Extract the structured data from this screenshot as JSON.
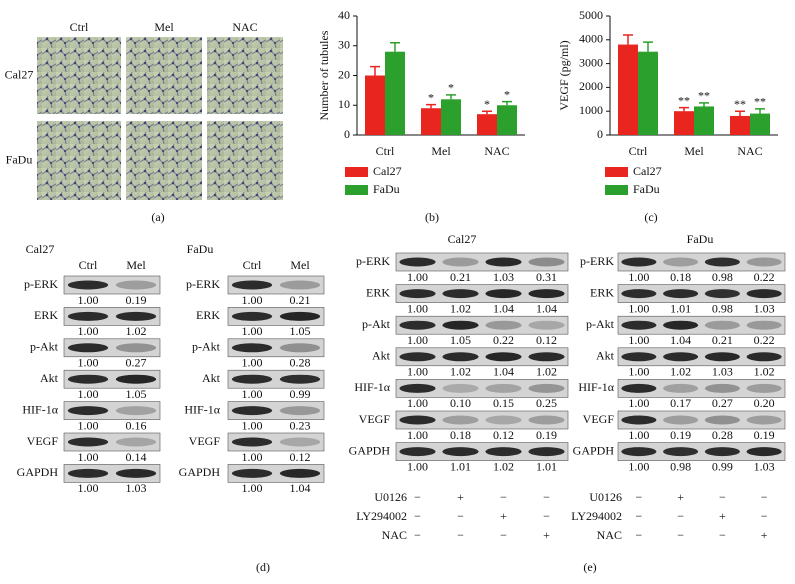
{
  "panel_labels": [
    "(a)",
    "(b)",
    "(c)",
    "(d)",
    "(e)"
  ],
  "microscopy": {
    "columns": [
      "Ctrl",
      "Mel",
      "NAC"
    ],
    "rows": [
      "Cal27",
      "FaDu"
    ]
  },
  "chart_data": [
    {
      "type": "bar",
      "ylabel": "Number of tubules",
      "categories": [
        "Ctrl",
        "Mel",
        "NAC"
      ],
      "series": [
        {
          "name": "Cal27",
          "color": "#e8251f",
          "values": [
            20,
            9,
            7
          ],
          "errors": [
            3,
            1.2,
            1
          ],
          "annotations": [
            null,
            "*",
            "*"
          ]
        },
        {
          "name": "FaDu",
          "color": "#2ca02c",
          "values": [
            28,
            12,
            10
          ],
          "errors": [
            3,
            1.5,
            1.2
          ],
          "annotations": [
            null,
            "*",
            "*"
          ]
        }
      ],
      "ylim": [
        0,
        40
      ],
      "yticks": [
        0,
        10,
        20,
        30,
        40
      ]
    },
    {
      "type": "bar",
      "ylabel": "VEGF (pg/ml)",
      "categories": [
        "Ctrl",
        "Mel",
        "NAC"
      ],
      "series": [
        {
          "name": "Cal27",
          "color": "#e8251f",
          "values": [
            3800,
            1000,
            800
          ],
          "errors": [
            400,
            150,
            200
          ],
          "annotations": [
            null,
            "**",
            "**"
          ]
        },
        {
          "name": "FaDu",
          "color": "#2ca02c",
          "values": [
            3500,
            1200,
            900
          ],
          "errors": [
            400,
            150,
            200
          ],
          "annotations": [
            null,
            "**",
            "**"
          ]
        }
      ],
      "ylim": [
        0,
        5000
      ],
      "yticks": [
        0,
        1000,
        2000,
        3000,
        4000,
        5000
      ]
    }
  ],
  "blots": [
    {
      "title": "Cal27",
      "lanes": [
        "Ctrl",
        "Mel"
      ],
      "rows": [
        {
          "label": "p-ERK",
          "values": [
            "1.00",
            "0.19"
          ]
        },
        {
          "label": "ERK",
          "values": [
            "1.00",
            "1.02"
          ]
        },
        {
          "label": "p-Akt",
          "values": [
            "1.00",
            "0.27"
          ]
        },
        {
          "label": "Akt",
          "values": [
            "1.00",
            "1.05"
          ]
        },
        {
          "label": "HIF-1α",
          "values": [
            "1.00",
            "0.16"
          ]
        },
        {
          "label": "VEGF",
          "values": [
            "1.00",
            "0.14"
          ]
        },
        {
          "label": "GAPDH",
          "values": [
            "1.00",
            "1.03"
          ]
        }
      ]
    },
    {
      "title": "FaDu",
      "lanes": [
        "Ctrl",
        "Mel"
      ],
      "rows": [
        {
          "label": "p-ERK",
          "values": [
            "1.00",
            "0.21"
          ]
        },
        {
          "label": "ERK",
          "values": [
            "1.00",
            "1.05"
          ]
        },
        {
          "label": "p-Akt",
          "values": [
            "1.00",
            "0.28"
          ]
        },
        {
          "label": "Akt",
          "values": [
            "1.00",
            "0.99"
          ]
        },
        {
          "label": "HIF-1α",
          "values": [
            "1.00",
            "0.23"
          ]
        },
        {
          "label": "VEGF",
          "values": [
            "1.00",
            "0.12"
          ]
        },
        {
          "label": "GAPDH",
          "values": [
            "1.00",
            "1.04"
          ]
        }
      ]
    },
    {
      "title": "Cal27",
      "rows": [
        {
          "label": "p-ERK",
          "values": [
            "1.00",
            "0.21",
            "1.03",
            "0.31"
          ]
        },
        {
          "label": "ERK",
          "values": [
            "1.00",
            "1.02",
            "1.04",
            "1.04"
          ]
        },
        {
          "label": "p-Akt",
          "values": [
            "1.00",
            "1.05",
            "0.22",
            "0.12"
          ]
        },
        {
          "label": "Akt",
          "values": [
            "1.00",
            "1.02",
            "1.04",
            "1.02"
          ]
        },
        {
          "label": "HIF-1α",
          "values": [
            "1.00",
            "0.10",
            "0.15",
            "0.25"
          ]
        },
        {
          "label": "VEGF",
          "values": [
            "1.00",
            "0.18",
            "0.12",
            "0.19"
          ]
        },
        {
          "label": "GAPDH",
          "values": [
            "1.00",
            "1.01",
            "1.02",
            "1.01"
          ]
        }
      ],
      "treatments": [
        {
          "label": "U0126",
          "signs": [
            "−",
            "+",
            "−",
            "−"
          ]
        },
        {
          "label": "LY294002",
          "signs": [
            "−",
            "−",
            "+",
            "−"
          ]
        },
        {
          "label": "NAC",
          "signs": [
            "−",
            "−",
            "−",
            "+"
          ]
        }
      ]
    },
    {
      "title": "FaDu",
      "rows": [
        {
          "label": "p-ERK",
          "values": [
            "1.00",
            "0.18",
            "0.98",
            "0.22"
          ]
        },
        {
          "label": "ERK",
          "values": [
            "1.00",
            "1.01",
            "0.98",
            "1.03"
          ]
        },
        {
          "label": "p-Akt",
          "values": [
            "1.00",
            "1.04",
            "0.21",
            "0.22"
          ]
        },
        {
          "label": "Akt",
          "values": [
            "1.00",
            "1.02",
            "1.03",
            "1.02"
          ]
        },
        {
          "label": "HIF-1α",
          "values": [
            "1.00",
            "0.17",
            "0.27",
            "0.20"
          ]
        },
        {
          "label": "VEGF",
          "values": [
            "1.00",
            "0.19",
            "0.28",
            "0.19"
          ]
        },
        {
          "label": "GAPDH",
          "values": [
            "1.00",
            "0.98",
            "0.99",
            "1.03"
          ]
        }
      ],
      "treatments": [
        {
          "label": "U0126",
          "signs": [
            "−",
            "+",
            "−",
            "−"
          ]
        },
        {
          "label": "LY294002",
          "signs": [
            "−",
            "−",
            "+",
            "−"
          ]
        },
        {
          "label": "NAC",
          "signs": [
            "−",
            "−",
            "−",
            "+"
          ]
        }
      ]
    }
  ]
}
